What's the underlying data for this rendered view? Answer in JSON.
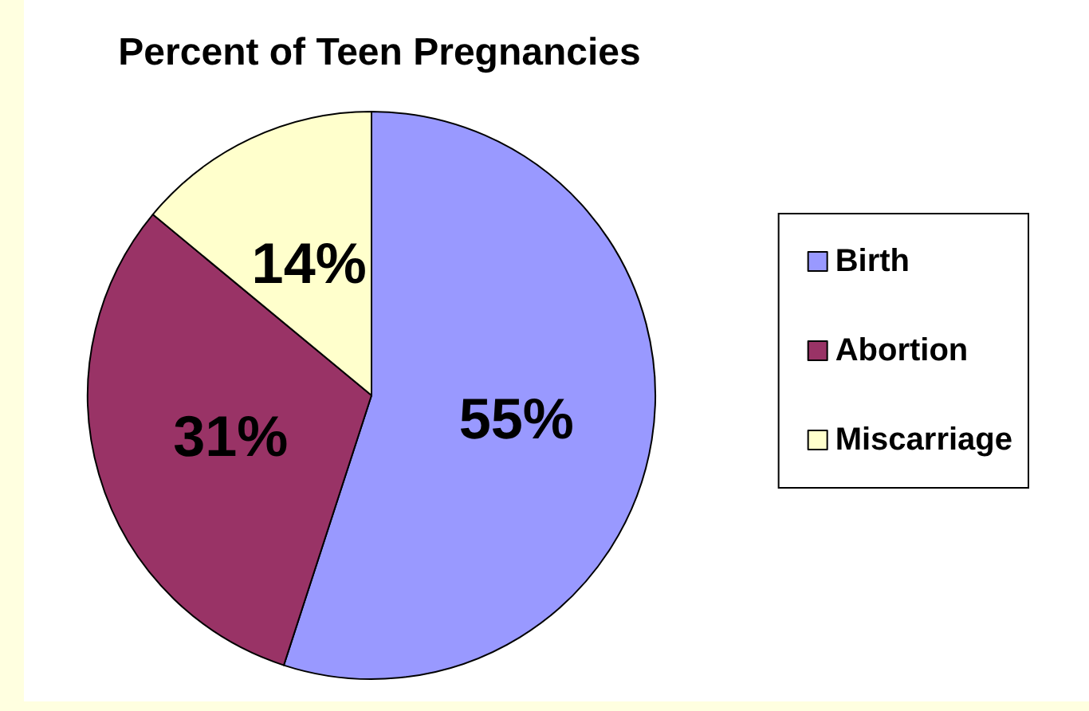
{
  "chart_data": {
    "type": "pie",
    "title": "Percent of Teen Pregnancies",
    "categories": [
      "Birth",
      "Abortion",
      "Miscarriage"
    ],
    "values": [
      55,
      31,
      14
    ],
    "colors": [
      "#9999ff",
      "#993366",
      "#ffffcc"
    ],
    "value_labels": [
      "55%",
      "31%",
      "14%"
    ],
    "legend": "right"
  }
}
